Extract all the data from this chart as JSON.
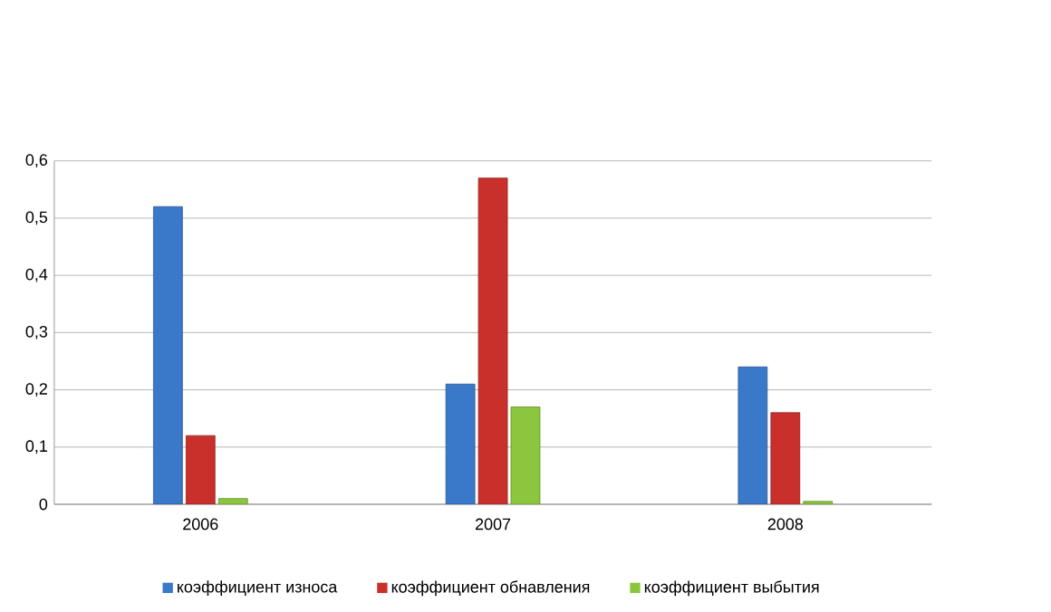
{
  "chart_data": {
    "type": "bar",
    "categories": [
      "2006",
      "2007",
      "2008"
    ],
    "series": [
      {
        "name": "коэффициент износа",
        "color": "#3a78c9",
        "values": [
          0.52,
          0.21,
          0.24
        ]
      },
      {
        "name": "коэффициент обнавления",
        "color": "#c9302c",
        "values": [
          0.12,
          0.57,
          0.16
        ]
      },
      {
        "name": "коэффициент выбытия",
        "color": "#8cc63f",
        "values": [
          0.01,
          0.17,
          0.005
        ]
      }
    ],
    "ylim": [
      0,
      0.6
    ],
    "yticks": [
      {
        "value": 0,
        "label": "0"
      },
      {
        "value": 0.1,
        "label": "0,1"
      },
      {
        "value": 0.2,
        "label": "0,2"
      },
      {
        "value": 0.3,
        "label": "0,3"
      },
      {
        "value": 0.4,
        "label": "0,4"
      },
      {
        "value": 0.5,
        "label": "0,5"
      },
      {
        "value": 0.6,
        "label": "0,6"
      }
    ],
    "grid": "y",
    "legend": "bottom"
  }
}
